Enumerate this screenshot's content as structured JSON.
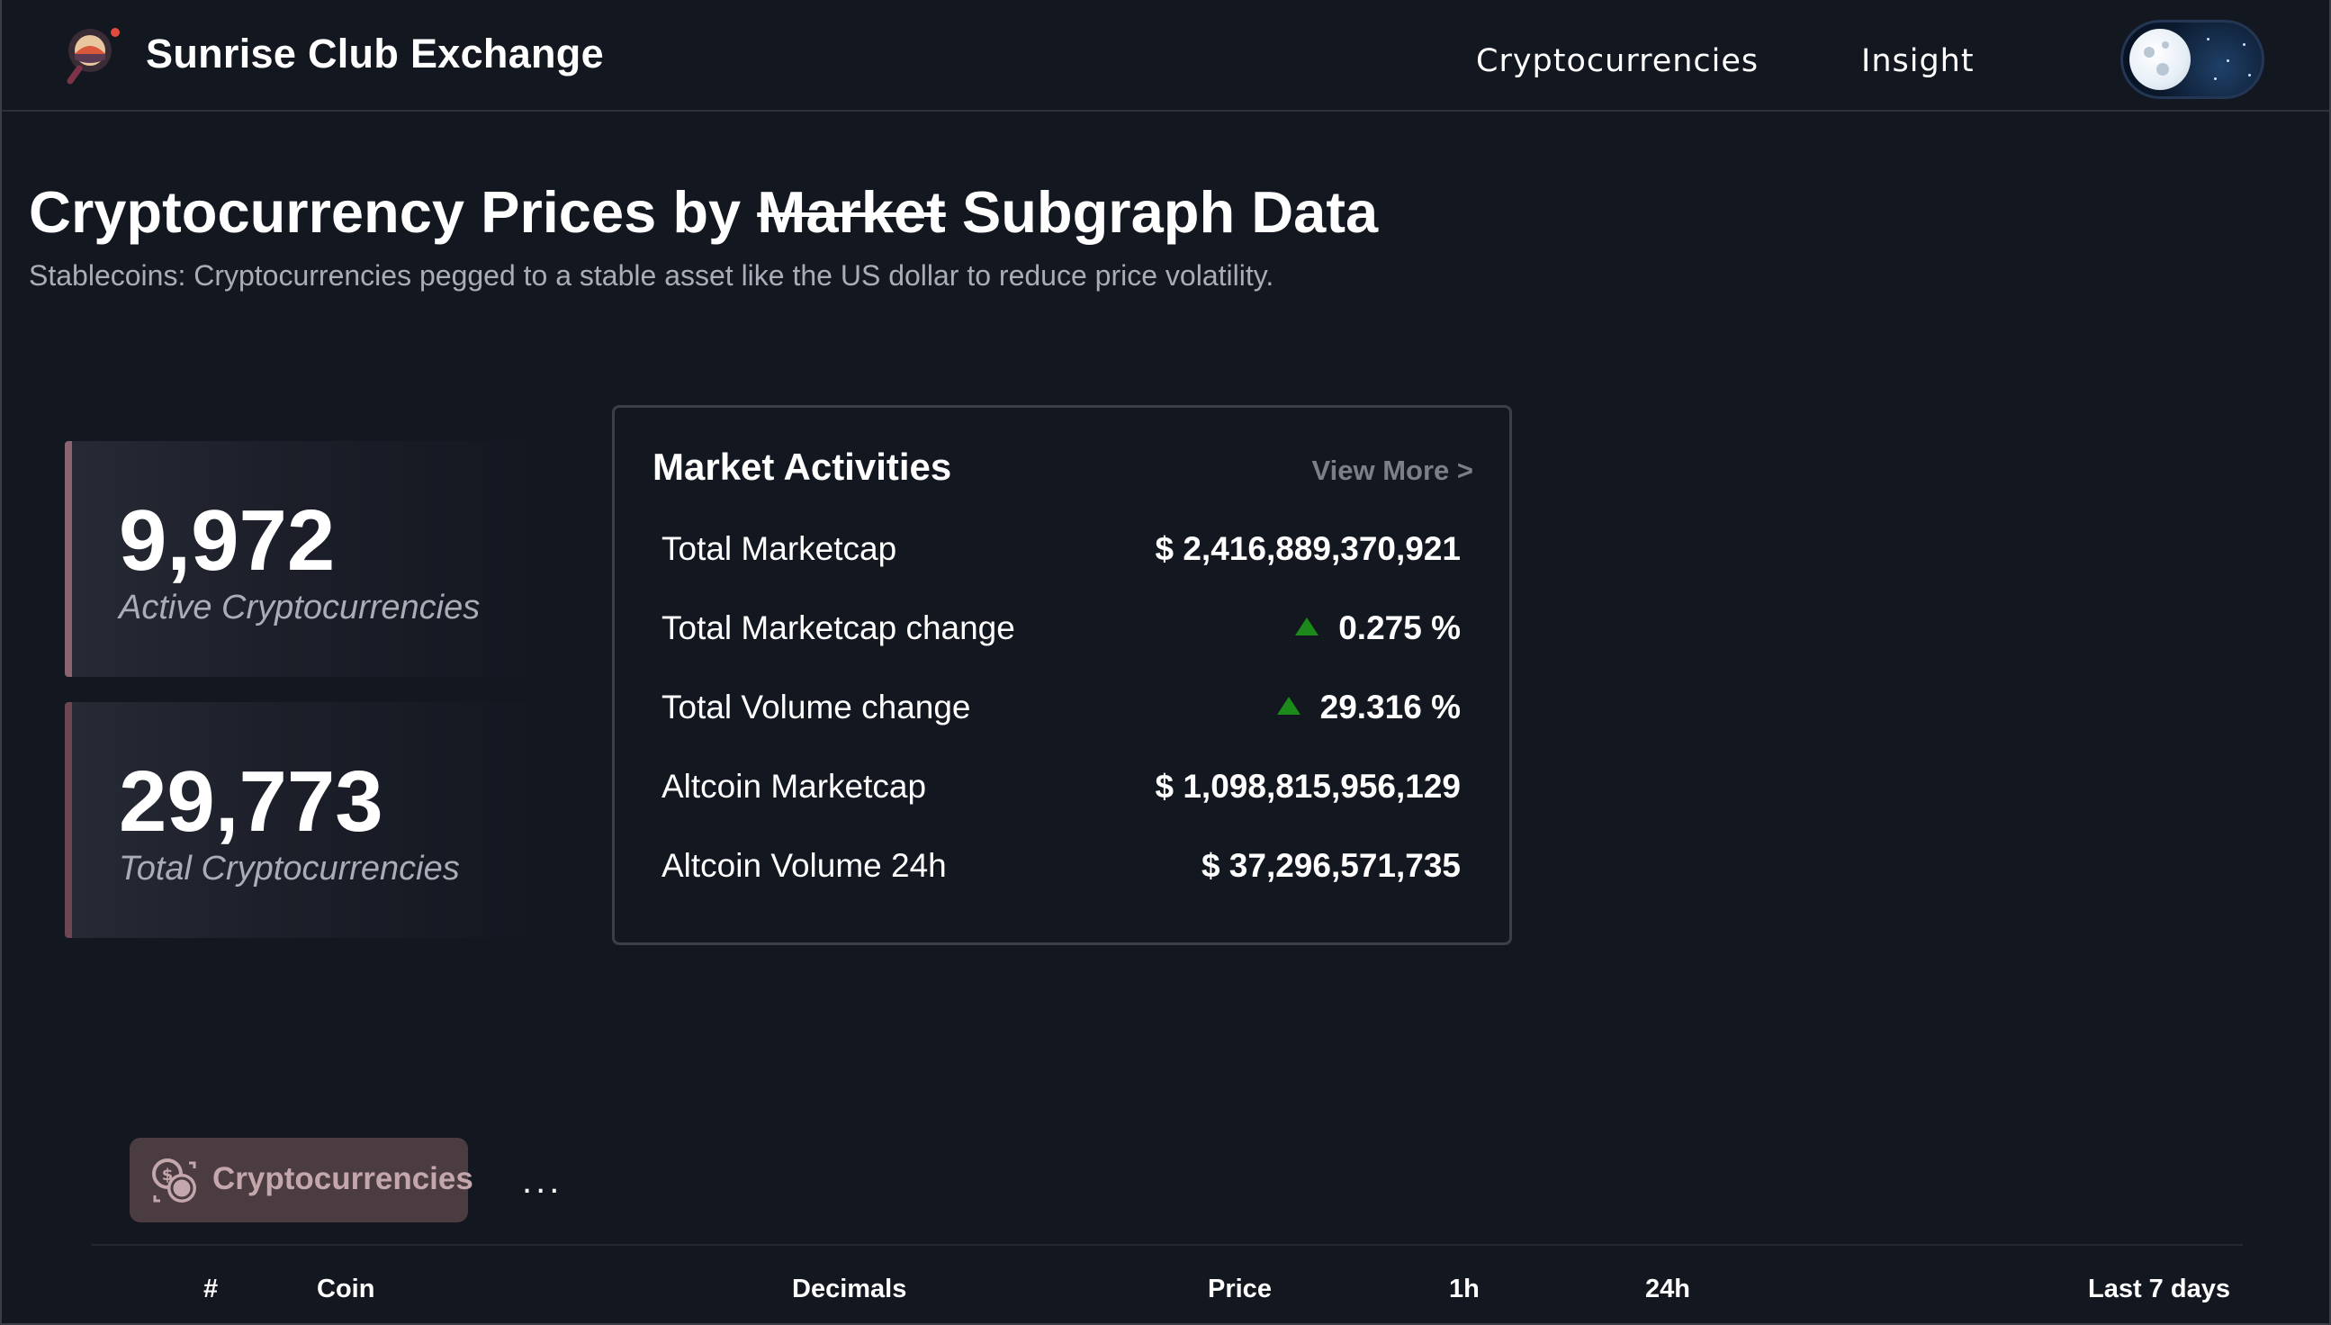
{
  "header": {
    "brand": "Sunrise Club Exchange",
    "nav": [
      {
        "label": "Cryptocurrencies"
      },
      {
        "label": "Insight"
      }
    ],
    "theme_toggle": {
      "icon": "moon-icon",
      "mode": "dark"
    }
  },
  "hero": {
    "title_before": "Cryptocurrency Prices by ",
    "title_struck": "Market",
    "title_after": " Subgraph Data",
    "subtitle": "Stablecoins: Cryptocurrencies pegged to a stable asset like the US dollar to reduce price volatility."
  },
  "stats": [
    {
      "value": "9,972",
      "label": "Active Cryptocurrencies"
    },
    {
      "value": "29,773",
      "label": "Total Cryptocurrencies"
    }
  ],
  "market": {
    "title": "Market Activities",
    "view_more": "View More >",
    "rows": [
      {
        "label": "Total Marketcap",
        "value": "$ 2,416,889,370,921",
        "trend": ""
      },
      {
        "label": "Total Marketcap change",
        "value": "0.275 %",
        "trend": "up"
      },
      {
        "label": "Total Volume change",
        "value": "29.316 %",
        "trend": "up"
      },
      {
        "label": "Altcoin Marketcap",
        "value": "$ 1,098,815,956,129",
        "trend": ""
      },
      {
        "label": "Altcoin Volume 24h",
        "value": "$ 37,296,571,735",
        "trend": ""
      }
    ],
    "up_color": "#1b8a1b"
  },
  "tabs": {
    "active": "Cryptocurrencies",
    "more": "..."
  },
  "table": {
    "columns": [
      "#",
      "Coin",
      "Decimals",
      "Price",
      "1h",
      "24h",
      "Last 7 days"
    ]
  }
}
